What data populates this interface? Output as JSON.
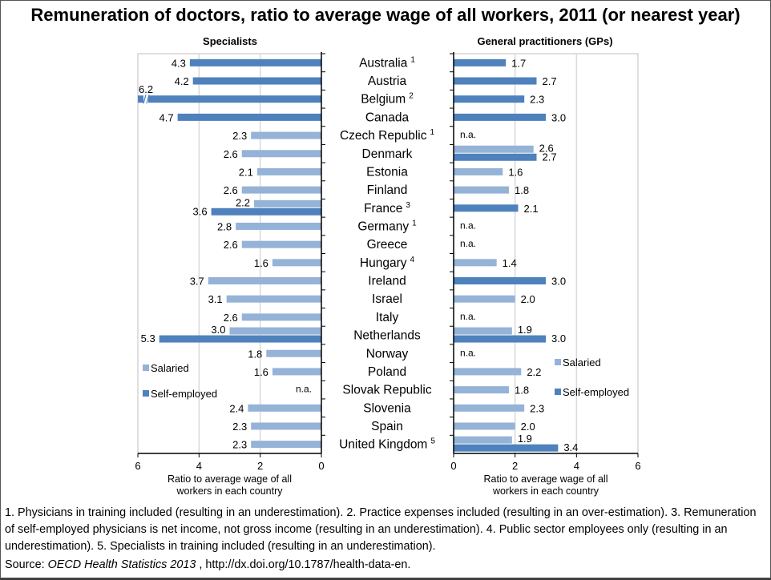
{
  "title": "Remuneration of doctors, ratio to average wage of all workers, 2011 (or nearest year)",
  "footnotes": "1. Physicians in training included (resulting in an underestimation). 2. Practice expenses included (resulting in an over-estimation). 3. Remuneration of self-employed physicians is net income, not gross income (resulting in an underestimation). 4. Public sector employees only (resulting in an underestimation). 5. Specialists in training included (resulting in an underestimation).",
  "source": {
    "label": "Source: ",
    "publication": "OECD Health Statistics 2013",
    "link": " , http://dx.doi.org/10.1787/health-data-en."
  },
  "colors": {
    "salaried": "#95b3d7",
    "self_employed": "#4f81bd",
    "grid": "#d9d9d9",
    "axis": "#595959"
  },
  "chart_data": [
    {
      "type": "bar",
      "orientation": "horizontal",
      "title": "Specialists",
      "direction": "reversed",
      "xlabel": "Ratio to average wage of all workers in each country",
      "xlabel_lines": [
        "Ratio to average wage of all",
        "workers in each country"
      ],
      "xlim": [
        0,
        6
      ],
      "xticks": [
        "0",
        "2",
        "4",
        "6"
      ],
      "grid": true,
      "legend": {
        "placement": "bottom-left",
        "entries": [
          "Salaried",
          "Self-employed"
        ]
      },
      "categories": [
        "Australia",
        "Austria",
        "Belgium",
        "Canada",
        "Czech Republic",
        "Denmark",
        "Estonia",
        "Finland",
        "France",
        "Germany",
        "Greece",
        "Hungary",
        "Ireland",
        "Israel",
        "Italy",
        "Netherlands",
        "Norway",
        "Poland",
        "Slovak Republic",
        "Slovenia",
        "Spain",
        "United Kingdom"
      ],
      "series": [
        {
          "name": "Salaried",
          "values": [
            null,
            null,
            null,
            null,
            2.3,
            2.6,
            2.1,
            2.6,
            2.2,
            2.8,
            2.6,
            1.6,
            3.7,
            3.1,
            2.6,
            3.0,
            1.8,
            1.6,
            null,
            2.4,
            2.3,
            2.3
          ]
        },
        {
          "name": "Self-employed",
          "values": [
            4.3,
            4.2,
            6.2,
            4.7,
            null,
            null,
            null,
            null,
            3.6,
            null,
            null,
            null,
            null,
            null,
            null,
            5.3,
            null,
            null,
            null,
            null,
            null,
            null
          ]
        }
      ],
      "na_categories": [
        "Slovak Republic"
      ],
      "na_label": "n.a.",
      "broken_axis_categories": [
        "Belgium"
      ]
    },
    {
      "type": "bar",
      "orientation": "horizontal",
      "title": "General practitioners (GPs)",
      "direction": "normal",
      "xlabel": "Ratio to average wage of all workers in each country",
      "xlabel_lines": [
        "Ratio to average wage of all",
        "workers in each country"
      ],
      "xlim": [
        0,
        6
      ],
      "xticks": [
        "0",
        "2",
        "4",
        "6"
      ],
      "grid": true,
      "legend": {
        "placement": "right",
        "entries": [
          "Salaried",
          "Self-employed"
        ]
      },
      "categories": [
        "Australia",
        "Austria",
        "Belgium",
        "Canada",
        "Czech Republic",
        "Denmark",
        "Estonia",
        "Finland",
        "France",
        "Germany",
        "Greece",
        "Hungary",
        "Ireland",
        "Israel",
        "Italy",
        "Netherlands",
        "Norway",
        "Poland",
        "Slovak Republic",
        "Slovenia",
        "Spain",
        "United Kingdom"
      ],
      "series": [
        {
          "name": "Salaried",
          "values": [
            null,
            null,
            null,
            null,
            null,
            2.6,
            1.6,
            1.8,
            null,
            null,
            null,
            1.4,
            null,
            2.0,
            null,
            1.9,
            null,
            2.2,
            1.8,
            2.3,
            2.0,
            1.9
          ]
        },
        {
          "name": "Self-employed",
          "values": [
            1.7,
            2.7,
            2.3,
            3.0,
            null,
            2.7,
            null,
            null,
            2.1,
            null,
            null,
            null,
            3.0,
            null,
            null,
            3.0,
            null,
            null,
            null,
            null,
            null,
            3.4
          ]
        }
      ],
      "na_categories": [
        "Czech Republic",
        "Germany",
        "Greece",
        "Italy",
        "Norway"
      ],
      "na_label": "n.a."
    }
  ],
  "country_labels": [
    {
      "name": "Australia",
      "note": "1"
    },
    {
      "name": "Austria",
      "note": ""
    },
    {
      "name": "Belgium",
      "note": "2"
    },
    {
      "name": "Canada",
      "note": ""
    },
    {
      "name": "Czech Republic",
      "note": "1"
    },
    {
      "name": "Denmark",
      "note": ""
    },
    {
      "name": "Estonia",
      "note": ""
    },
    {
      "name": "Finland",
      "note": ""
    },
    {
      "name": "France",
      "note": "3"
    },
    {
      "name": "Germany",
      "note": "1"
    },
    {
      "name": "Greece",
      "note": ""
    },
    {
      "name": "Hungary",
      "note": "4"
    },
    {
      "name": "Ireland",
      "note": ""
    },
    {
      "name": "Israel",
      "note": ""
    },
    {
      "name": "Italy",
      "note": ""
    },
    {
      "name": "Netherlands",
      "note": ""
    },
    {
      "name": "Norway",
      "note": ""
    },
    {
      "name": "Poland",
      "note": ""
    },
    {
      "name": "Slovak Republic",
      "note": ""
    },
    {
      "name": "Slovenia",
      "note": ""
    },
    {
      "name": "Spain",
      "note": ""
    },
    {
      "name": "United Kingdom",
      "note": "5"
    }
  ]
}
